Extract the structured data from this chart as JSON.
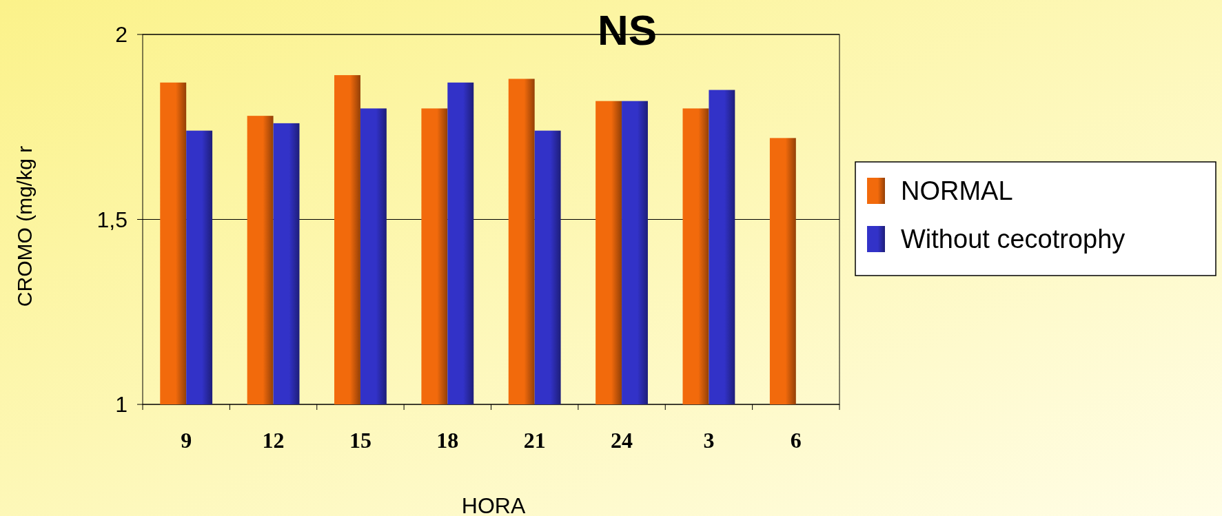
{
  "chart_data": {
    "type": "bar",
    "title": "NS",
    "xlabel": "HORA",
    "ylabel": "CROMO (mg/kg r",
    "categories": [
      "9",
      "12",
      "15",
      "18",
      "21",
      "24",
      "3",
      "6"
    ],
    "series": [
      {
        "name": "NORMAL",
        "color": "#f26a0c",
        "values": [
          1.87,
          1.78,
          1.89,
          1.8,
          1.88,
          1.82,
          1.8,
          1.72
        ]
      },
      {
        "name": "Without cecotrophy",
        "color": "#3232c8",
        "values": [
          1.74,
          1.76,
          1.8,
          1.87,
          1.74,
          1.82,
          1.85,
          null
        ]
      }
    ],
    "ylim": [
      1,
      2
    ],
    "yticks": [
      1,
      {
        "value": 1.5,
        "label": "1,5"
      },
      2
    ],
    "grid": "y",
    "legend": "right"
  }
}
